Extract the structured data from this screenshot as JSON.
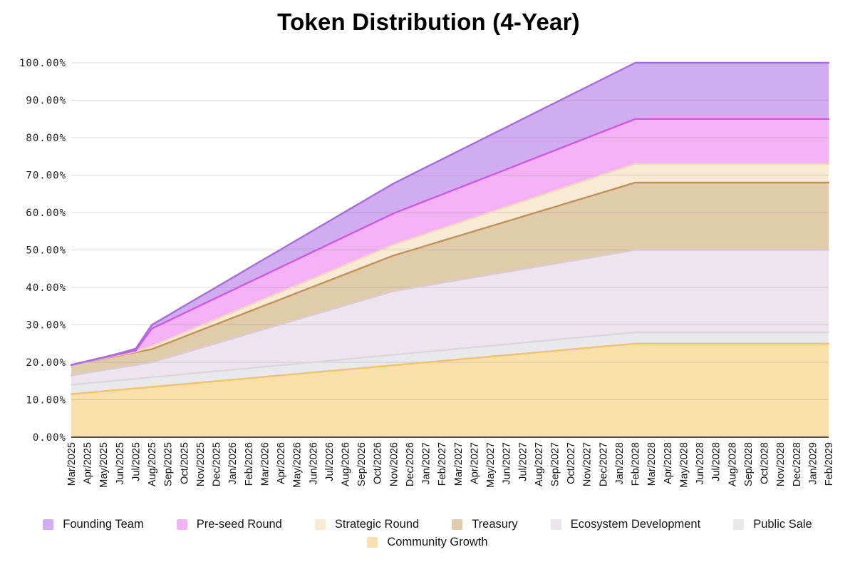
{
  "title": "Token Distribution (4-Year)",
  "y_axis": {
    "tick_labels": [
      "0.00%",
      "10.00%",
      "20.00%",
      "30.00%",
      "40.00%",
      "50.00%",
      "60.00%",
      "70.00%",
      "80.00%",
      "90.00%",
      "100.00%"
    ]
  },
  "legend": {
    "order": [
      "Founding Team",
      "Pre-seed Round",
      "Strategic Round",
      "Treasury",
      "Ecosystem Development",
      "Public Sale",
      "Community Growth"
    ]
  },
  "colors": {
    "grid_overlay": "rgba(108,108,108,0.25)",
    "axis_baseline": "#4d4d4d",
    "title_text": "#000000",
    "tick_text": "#1f1f1f"
  },
  "chart_data": {
    "type": "area",
    "stacked": true,
    "stack_order": "bottom-to-top",
    "title": "Token Distribution (4-Year)",
    "xlabel": "",
    "ylabel": "",
    "ylim": [
      0,
      100
    ],
    "grid": true,
    "legend_position": "bottom",
    "x": [
      "Mar/2025",
      "Apr/2025",
      "May/2025",
      "Jun/2025",
      "Jul/2025",
      "Aug/2025",
      "Sep/2025",
      "Oct/2025",
      "Nov/2025",
      "Dec/2025",
      "Jan/2026",
      "Feb/2026",
      "Mar/2026",
      "Apr/2026",
      "May/2026",
      "Jun/2026",
      "Jul/2026",
      "Aug/2026",
      "Sep/2026",
      "Oct/2026",
      "Nov/2026",
      "Dec/2026",
      "Jan/2027",
      "Feb/2027",
      "Mar/2027",
      "Apr/2027",
      "May/2027",
      "Jun/2027",
      "Jul/2027",
      "Aug/2027",
      "Sep/2027",
      "Oct/2027",
      "Nov/2027",
      "Dec/2027",
      "Jan/2028",
      "Feb/2028",
      "Mar/2028",
      "Apr/2028",
      "May/2028",
      "Jun/2028",
      "Jul/2028",
      "Aug/2028",
      "Sep/2028",
      "Oct/2028",
      "Nov/2028",
      "Dec/2028",
      "Jan/2029",
      "Feb/2029"
    ],
    "series": [
      {
        "name": "Community Growth",
        "fill": "#F9E0AB",
        "line": "#F2C26D",
        "values": [
          11.5,
          11.89,
          12.27,
          12.66,
          13.04,
          13.43,
          13.81,
          14.2,
          14.59,
          14.97,
          15.36,
          15.74,
          16.13,
          16.51,
          16.9,
          17.29,
          17.67,
          18.06,
          18.44,
          18.83,
          19.21,
          19.6,
          19.99,
          20.37,
          20.76,
          21.14,
          21.53,
          21.91,
          22.3,
          22.69,
          23.07,
          23.46,
          23.84,
          24.23,
          24.61,
          25,
          25,
          25,
          25,
          25,
          25,
          25,
          25,
          25,
          25,
          25,
          25,
          25
        ]
      },
      {
        "name": "Public Sale",
        "fill": "#E9E9EB",
        "line": "#D9D9DC",
        "values": [
          2.5,
          2.52,
          2.53,
          2.55,
          2.56,
          2.58,
          2.59,
          2.61,
          2.62,
          2.64,
          2.65,
          2.67,
          2.68,
          2.7,
          2.71,
          2.73,
          2.74,
          2.76,
          2.77,
          2.79,
          2.8,
          2.81,
          2.83,
          2.84,
          2.85,
          2.87,
          2.88,
          2.89,
          2.91,
          2.92,
          2.93,
          2.95,
          2.96,
          2.97,
          2.99,
          3,
          3,
          3,
          3,
          3,
          3,
          3,
          3,
          3,
          3,
          3,
          3,
          3
        ]
      },
      {
        "name": "Ecosystem Development",
        "fill": "#EDE4ED",
        "line": "#D9C9D9",
        "values": [
          2.5,
          2.8,
          3.1,
          3.4,
          3.7,
          4,
          4.87,
          5.73,
          6.6,
          7.47,
          8.33,
          9.2,
          10.07,
          10.93,
          11.8,
          12.67,
          13.53,
          14.4,
          15.27,
          16.13,
          17,
          17.33,
          17.67,
          18,
          18.33,
          18.67,
          19,
          19.33,
          19.67,
          20,
          20.33,
          20.67,
          21,
          21.33,
          21.67,
          22,
          22,
          22,
          22,
          22,
          22,
          22,
          22,
          22,
          22,
          22,
          22,
          22
        ]
      },
      {
        "name": "Treasury",
        "fill": "#E0CCAA",
        "line": "#C09258",
        "values": [
          2.8,
          2.94,
          3.08,
          3.22,
          3.36,
          3.5,
          3.9,
          4.3,
          4.7,
          5.1,
          5.5,
          5.9,
          6.3,
          6.7,
          7.1,
          7.5,
          7.9,
          8.3,
          8.7,
          9.1,
          9.5,
          10.07,
          10.63,
          11.2,
          11.77,
          12.33,
          12.9,
          13.47,
          14.03,
          14.6,
          15.17,
          15.73,
          16.3,
          16.87,
          17.43,
          18,
          18,
          18,
          18,
          18,
          18,
          18,
          18,
          18,
          18,
          18,
          18,
          18
        ]
      },
      {
        "name": "Strategic Round",
        "fill": "#F9EAD3",
        "line": "#EFD9B8",
        "values": [
          0,
          0.05,
          0.1,
          0.15,
          0.2,
          0.8,
          0.94,
          1.08,
          1.22,
          1.36,
          1.5,
          1.64,
          1.78,
          1.92,
          2.06,
          2.2,
          2.34,
          2.48,
          2.62,
          2.76,
          2.9,
          3.04,
          3.18,
          3.32,
          3.46,
          3.6,
          3.74,
          3.88,
          4.02,
          4.16,
          4.3,
          4.44,
          4.58,
          4.72,
          4.86,
          5,
          5,
          5,
          5,
          5,
          5,
          5,
          5,
          5,
          5,
          5,
          5,
          5
        ]
      },
      {
        "name": "Pre-seed Round",
        "fill": "#F3B2F4",
        "line": "#D357E0",
        "values": [
          0,
          0.08,
          0.15,
          0.23,
          0.3,
          4.7,
          4.94,
          5.19,
          5.43,
          5.67,
          5.92,
          6.16,
          6.4,
          6.65,
          6.89,
          7.13,
          7.38,
          7.62,
          7.86,
          8.11,
          8.35,
          8.59,
          8.84,
          9.08,
          9.32,
          9.57,
          9.81,
          10.05,
          10.3,
          10.54,
          10.78,
          11.03,
          11.27,
          11.51,
          11.76,
          12,
          12,
          12,
          12,
          12,
          12,
          12,
          12,
          12,
          12,
          12,
          12,
          12
        ]
      },
      {
        "name": "Founding Team",
        "fill": "#D1ACF0",
        "line": "#A96BE3",
        "values": [
          0,
          0.07,
          0.13,
          0.2,
          0.5,
          1,
          1.47,
          1.93,
          2.4,
          2.87,
          3.33,
          3.8,
          4.27,
          4.73,
          5.2,
          5.67,
          6.13,
          6.6,
          7.07,
          7.53,
          8,
          8.47,
          8.93,
          9.4,
          9.87,
          10.33,
          10.8,
          11.27,
          11.73,
          12.2,
          12.67,
          13.13,
          13.6,
          14.07,
          14.53,
          15,
          15,
          15,
          15,
          15,
          15,
          15,
          15,
          15,
          15,
          15,
          15,
          15
        ]
      }
    ]
  }
}
